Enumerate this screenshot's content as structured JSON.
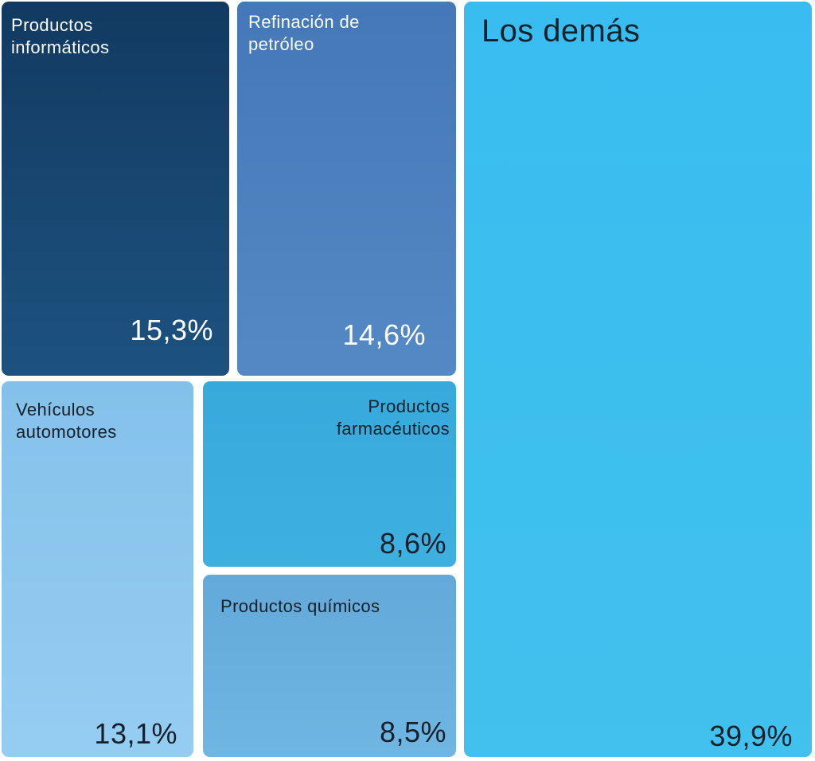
{
  "chart_data": {
    "type": "treemap",
    "unit": "%",
    "value_format": "comma-decimal percent",
    "legend": "none",
    "labels_position": "inside tiles: name top, value bottom-right",
    "items": [
      {
        "label": "Productos informáticos",
        "value_label": "15,3%",
        "value": 15.3,
        "color_top": "#123a61",
        "color_bottom": "#1d527f",
        "text_color": "#ffffff"
      },
      {
        "label": "Refinación de petróleo",
        "value_label": "14,6%",
        "value": 14.6,
        "color_top": "#4478b8",
        "color_bottom": "#5389c4",
        "text_color": "#ffffff"
      },
      {
        "label": "Los demás",
        "value_label": "39,9%",
        "value": 39.9,
        "color_top": "#39bdf0",
        "color_bottom": "#41c1ed",
        "text_color": "#15202b"
      },
      {
        "label": "Vehículos automotores",
        "value_label": "13,1%",
        "value": 13.1,
        "color_top": "#84c1ea",
        "color_bottom": "#95cdf2",
        "text_color": "#15202b"
      },
      {
        "label": "Productos farmacéuticos",
        "value_label": "8,6%",
        "value": 8.6,
        "color_top": "#37a9dc",
        "color_bottom": "#3eb0e0",
        "text_color": "#15202b"
      },
      {
        "label": "Productos químicos",
        "value_label": "8,5%",
        "value": 8.5,
        "color_top": "#63a9d9",
        "color_bottom": "#70b6e3",
        "text_color": "#15202b"
      }
    ]
  }
}
